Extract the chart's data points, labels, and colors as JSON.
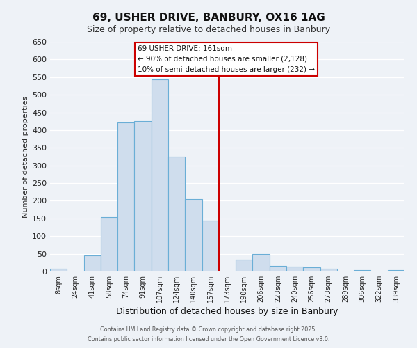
{
  "title": "69, USHER DRIVE, BANBURY, OX16 1AG",
  "subtitle": "Size of property relative to detached houses in Banbury",
  "xlabel": "Distribution of detached houses by size in Banbury",
  "ylabel": "Number of detached properties",
  "bar_labels": [
    "8sqm",
    "24sqm",
    "41sqm",
    "58sqm",
    "74sqm",
    "91sqm",
    "107sqm",
    "124sqm",
    "140sqm",
    "157sqm",
    "173sqm",
    "190sqm",
    "206sqm",
    "223sqm",
    "240sqm",
    "256sqm",
    "273sqm",
    "289sqm",
    "306sqm",
    "322sqm",
    "339sqm"
  ],
  "bar_values": [
    8,
    0,
    45,
    153,
    422,
    425,
    543,
    325,
    205,
    143,
    0,
    34,
    49,
    15,
    14,
    12,
    7,
    0,
    3,
    0,
    4
  ],
  "bar_color": "#cfdded",
  "bar_edge_color": "#6aaed6",
  "bar_width": 1.0,
  "vline_x": 9.5,
  "vline_color": "#cc0000",
  "annotation_title": "69 USHER DRIVE: 161sqm",
  "annotation_line1": "← 90% of detached houses are smaller (2,128)",
  "annotation_line2": "10% of semi-detached houses are larger (232) →",
  "annotation_box_edgecolor": "#cc0000",
  "ylim": [
    0,
    650
  ],
  "yticks": [
    0,
    50,
    100,
    150,
    200,
    250,
    300,
    350,
    400,
    450,
    500,
    550,
    600,
    650
  ],
  "footer1": "Contains HM Land Registry data © Crown copyright and database right 2025.",
  "footer2": "Contains public sector information licensed under the Open Government Licence v3.0.",
  "bg_color": "#eef2f7",
  "grid_color": "#ffffff"
}
